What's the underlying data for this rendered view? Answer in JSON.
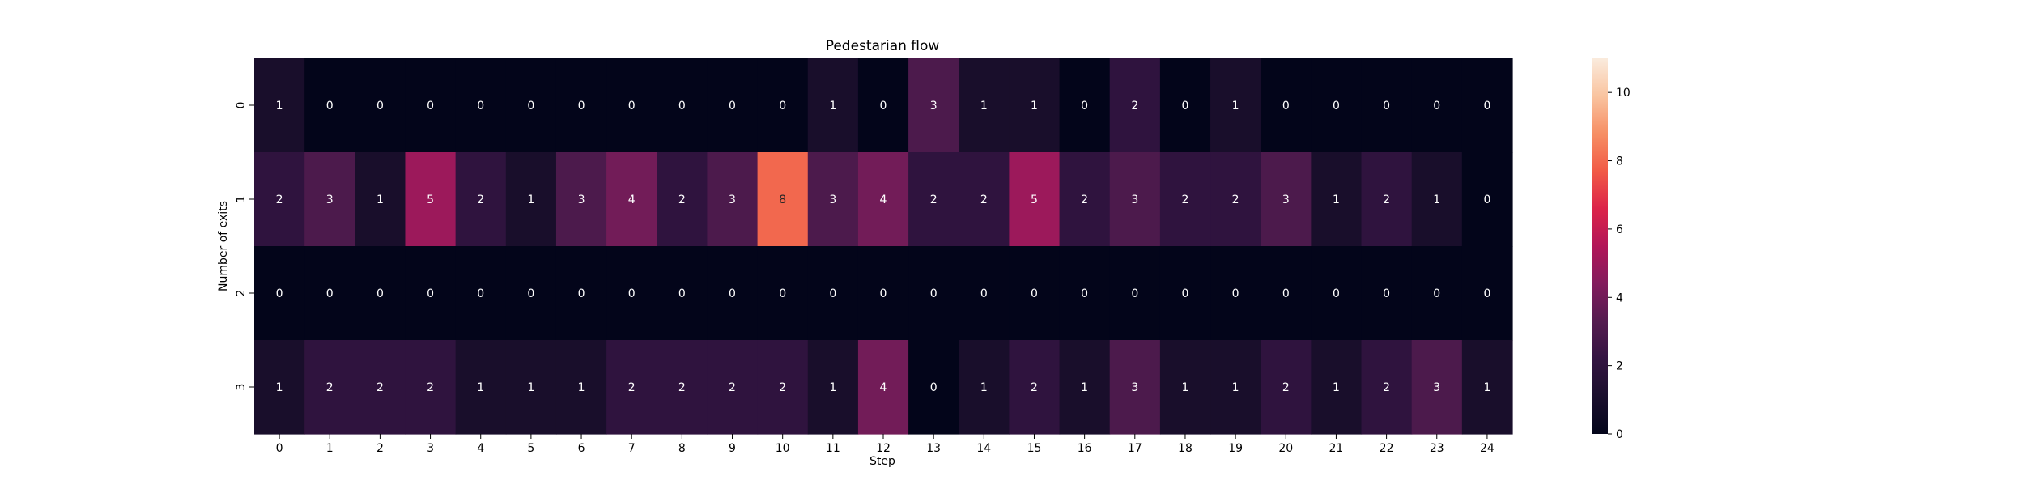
{
  "chart_data": {
    "type": "heatmap",
    "title": "Pedestarian flow",
    "xlabel": "Step",
    "ylabel": "Number of exits",
    "x_ticks": [
      "0",
      "1",
      "2",
      "3",
      "4",
      "5",
      "6",
      "7",
      "8",
      "9",
      "10",
      "11",
      "12",
      "13",
      "14",
      "15",
      "16",
      "17",
      "18",
      "19",
      "20",
      "21",
      "22",
      "23",
      "24"
    ],
    "y_ticks": [
      "0",
      "1",
      "2",
      "3"
    ],
    "values": [
      [
        1,
        0,
        0,
        0,
        0,
        0,
        0,
        0,
        0,
        0,
        0,
        1,
        0,
        3,
        1,
        1,
        0,
        2,
        0,
        1,
        0,
        0,
        0,
        0,
        0
      ],
      [
        2,
        3,
        1,
        5,
        2,
        1,
        3,
        4,
        2,
        3,
        8,
        3,
        4,
        2,
        2,
        5,
        2,
        3,
        2,
        2,
        3,
        1,
        2,
        1,
        0
      ],
      [
        0,
        0,
        0,
        0,
        0,
        0,
        0,
        0,
        0,
        0,
        0,
        0,
        0,
        0,
        0,
        0,
        0,
        0,
        0,
        0,
        0,
        0,
        0,
        0,
        0
      ],
      [
        1,
        2,
        2,
        2,
        1,
        1,
        1,
        2,
        2,
        2,
        2,
        1,
        4,
        0,
        1,
        2,
        1,
        3,
        1,
        1,
        2,
        1,
        2,
        3,
        1
      ]
    ],
    "colorbar": {
      "min": 0,
      "max": 11,
      "ticks": [
        "0",
        "2",
        "4",
        "6",
        "8",
        "10"
      ],
      "colormap": "rocket"
    },
    "annotate": true
  }
}
